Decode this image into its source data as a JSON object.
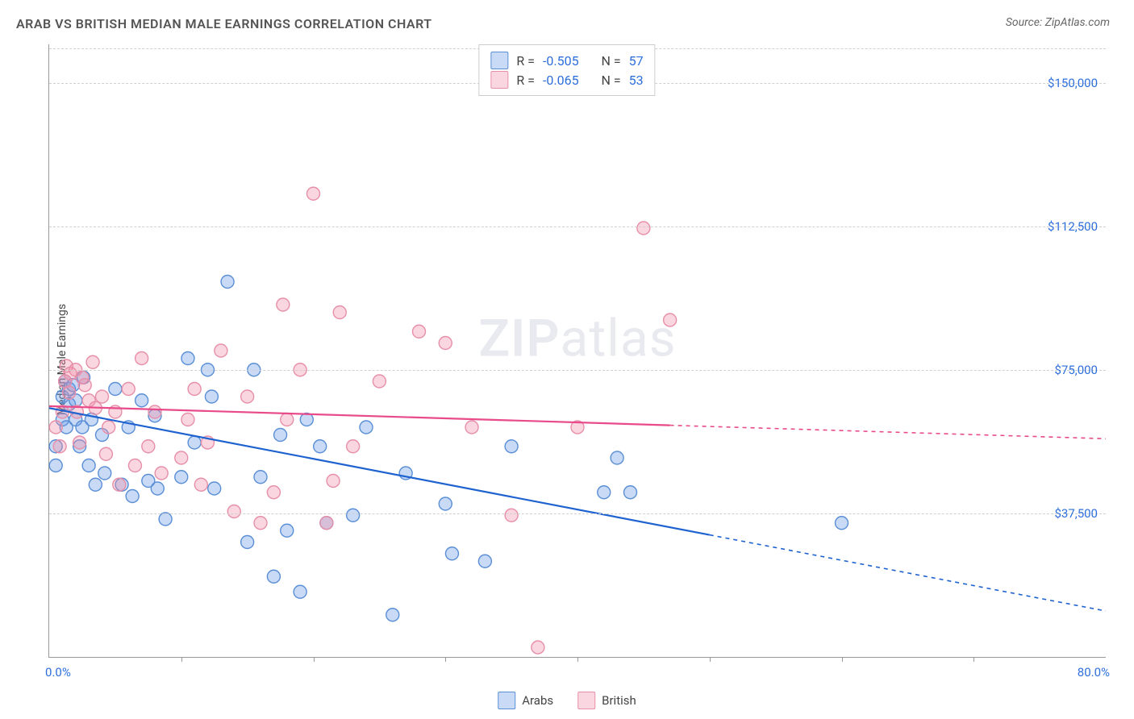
{
  "title": "ARAB VS BRITISH MEDIAN MALE EARNINGS CORRELATION CHART",
  "source": "Source: ZipAtlas.com",
  "watermark": {
    "part1": "ZIP",
    "part2": "atlas"
  },
  "ylabel": "Median Male Earnings",
  "chart": {
    "type": "scatter",
    "xlim": [
      0,
      80
    ],
    "ylim": [
      0,
      160000
    ],
    "xlabel_min": "0.0%",
    "xlabel_max": "80.0%",
    "xtick_step": 10,
    "yticks": [
      37500,
      75000,
      112500,
      150000
    ],
    "ytick_labels": [
      "$37,500",
      "$75,000",
      "$112,500",
      "$150,000"
    ],
    "background_color": "#ffffff",
    "grid_color": "#d0d0d0",
    "axis_color": "#999999",
    "marker_radius": 8,
    "marker_stroke_width": 1.4,
    "trend_line_width": 2.2,
    "trend_dash": "5,5",
    "series": [
      {
        "key": "arabs",
        "label": "Arabs",
        "fill": "rgba(100,150,230,0.35)",
        "stroke": "#5a8fd6",
        "trend_color": "#1e62d0",
        "R": "-0.505",
        "N": "57",
        "trend": {
          "x1": 0,
          "y1": 65000,
          "x2": 80,
          "y2": 12000,
          "solid_until_x": 50
        },
        "points": [
          [
            0.5,
            55000
          ],
          [
            0.5,
            50000
          ],
          [
            1,
            68000
          ],
          [
            1,
            62000
          ],
          [
            1.2,
            72000
          ],
          [
            1.3,
            60000
          ],
          [
            1.5,
            66000
          ],
          [
            1.5,
            70000
          ],
          [
            1.8,
            71000
          ],
          [
            2,
            67000
          ],
          [
            2,
            62000
          ],
          [
            2.3,
            55000
          ],
          [
            2.5,
            60000
          ],
          [
            2.6,
            73000
          ],
          [
            3,
            50000
          ],
          [
            3.2,
            62000
          ],
          [
            3.5,
            45000
          ],
          [
            4,
            58000
          ],
          [
            4.2,
            48000
          ],
          [
            5,
            70000
          ],
          [
            5.5,
            45000
          ],
          [
            6,
            60000
          ],
          [
            6.3,
            42000
          ],
          [
            7,
            67000
          ],
          [
            7.5,
            46000
          ],
          [
            8,
            63000
          ],
          [
            8.2,
            44000
          ],
          [
            8.8,
            36000
          ],
          [
            10,
            47000
          ],
          [
            10.5,
            78000
          ],
          [
            11,
            56000
          ],
          [
            12,
            75000
          ],
          [
            12.3,
            68000
          ],
          [
            12.5,
            44000
          ],
          [
            13.5,
            98000
          ],
          [
            15,
            30000
          ],
          [
            15.5,
            75000
          ],
          [
            16,
            47000
          ],
          [
            17,
            21000
          ],
          [
            17.5,
            58000
          ],
          [
            18,
            33000
          ],
          [
            19,
            17000
          ],
          [
            19.5,
            62000
          ],
          [
            20.5,
            55000
          ],
          [
            21,
            35000
          ],
          [
            23,
            37000
          ],
          [
            24,
            60000
          ],
          [
            26,
            11000
          ],
          [
            27,
            48000
          ],
          [
            30,
            40000
          ],
          [
            30.5,
            27000
          ],
          [
            33,
            25000
          ],
          [
            35,
            55000
          ],
          [
            42,
            43000
          ],
          [
            43,
            52000
          ],
          [
            44,
            43000
          ],
          [
            60,
            35000
          ]
        ]
      },
      {
        "key": "british",
        "label": "British",
        "fill": "rgba(240,140,165,0.35)",
        "stroke": "#e78fa8",
        "trend_color": "#e84a8a",
        "R": "-0.065",
        "N": "53",
        "trend": {
          "x1": 0,
          "y1": 65500,
          "x2": 80,
          "y2": 57000,
          "solid_until_x": 47
        },
        "points": [
          [
            0.5,
            60000
          ],
          [
            0.8,
            55000
          ],
          [
            1,
            64000
          ],
          [
            1.2,
            72000
          ],
          [
            1.3,
            76000
          ],
          [
            1.5,
            69000
          ],
          [
            1.6,
            74000
          ],
          [
            2,
            75000
          ],
          [
            2.1,
            64000
          ],
          [
            2.3,
            56000
          ],
          [
            2.5,
            73000
          ],
          [
            2.7,
            71000
          ],
          [
            3,
            67000
          ],
          [
            3.3,
            77000
          ],
          [
            3.5,
            65000
          ],
          [
            4,
            68000
          ],
          [
            4.3,
            53000
          ],
          [
            4.5,
            60000
          ],
          [
            5,
            64000
          ],
          [
            5.3,
            45000
          ],
          [
            6,
            70000
          ],
          [
            6.5,
            50000
          ],
          [
            7,
            78000
          ],
          [
            7.5,
            55000
          ],
          [
            8,
            64000
          ],
          [
            8.5,
            48000
          ],
          [
            10,
            52000
          ],
          [
            10.5,
            62000
          ],
          [
            11,
            70000
          ],
          [
            11.5,
            45000
          ],
          [
            12,
            56000
          ],
          [
            13,
            80000
          ],
          [
            14,
            38000
          ],
          [
            15,
            68000
          ],
          [
            16,
            35000
          ],
          [
            17,
            43000
          ],
          [
            17.7,
            92000
          ],
          [
            18,
            62000
          ],
          [
            19,
            75000
          ],
          [
            20,
            121000
          ],
          [
            21,
            35000
          ],
          [
            21.5,
            46000
          ],
          [
            22,
            90000
          ],
          [
            23,
            55000
          ],
          [
            25,
            72000
          ],
          [
            28,
            85000
          ],
          [
            30,
            82000
          ],
          [
            32,
            60000
          ],
          [
            35,
            37000
          ],
          [
            37,
            2500
          ],
          [
            40,
            60000
          ],
          [
            45,
            112000
          ],
          [
            47,
            88000
          ]
        ]
      }
    ]
  },
  "legend_labels": {
    "R": "R =",
    "N": "N ="
  },
  "colors": {
    "value_text": "#2e6fdb",
    "label_text": "#444444"
  }
}
